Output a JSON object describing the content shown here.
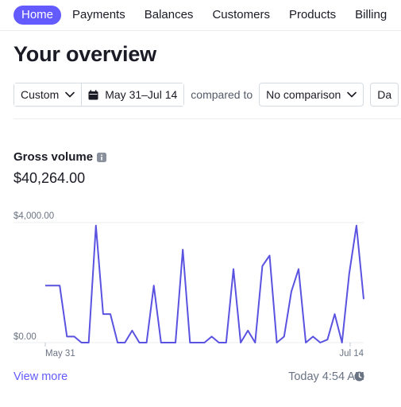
{
  "nav": {
    "items": [
      {
        "label": "Home",
        "active": true
      },
      {
        "label": "Payments",
        "active": false
      },
      {
        "label": "Balances",
        "active": false
      },
      {
        "label": "Customers",
        "active": false
      },
      {
        "label": "Products",
        "active": false
      },
      {
        "label": "Billing",
        "active": false
      }
    ]
  },
  "page": {
    "title": "Your overview"
  },
  "filters": {
    "period_label": "Custom",
    "date_range_label": "May 31–Jul 14",
    "compared_to_label": "compared to",
    "comparison_label": "No comparison",
    "interval_label": "Da"
  },
  "metric": {
    "label": "Gross volume",
    "value": "$40,264.00",
    "view_more_label": "View more",
    "updated_label": "Today 4:54 AM"
  },
  "colors": {
    "accent": "#635bff",
    "line": "#5a52e0",
    "grid": "#ebeef1",
    "muted": "#6a7383"
  },
  "icons": [
    "chevron-down-icon",
    "calendar-icon",
    "info-icon",
    "clock-icon"
  ],
  "chart_data": {
    "type": "line",
    "x_start": "May 31",
    "x_end": "Jul 14",
    "tick_labels_x": [
      "May 31",
      "Jul 14"
    ],
    "tick_labels_y": [
      "$4,000.00",
      "$0.00"
    ],
    "ylim": [
      0,
      4000
    ],
    "series": [
      {
        "values": [
          1900,
          1900,
          1900,
          200,
          200,
          0,
          0,
          3900,
          950,
          950,
          0,
          0,
          400,
          0,
          0,
          1900,
          0,
          0,
          0,
          3100,
          0,
          0,
          0,
          200,
          0,
          0,
          2450,
          0,
          400,
          0,
          2550,
          2900,
          0,
          200,
          1700,
          2450,
          0,
          200,
          0,
          100,
          950,
          0,
          2300,
          3900,
          1450
        ]
      }
    ],
    "grid": true
  }
}
